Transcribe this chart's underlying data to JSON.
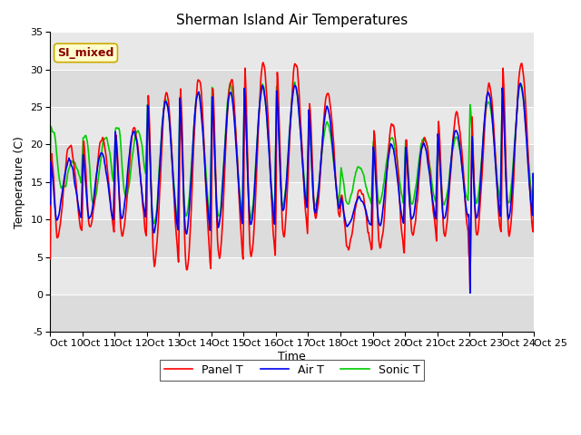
{
  "title": "Sherman Island Air Temperatures",
  "xlabel": "Time",
  "ylabel": "Temperature (C)",
  "ylim": [
    -5,
    35
  ],
  "xlim": [
    0,
    360
  ],
  "xtick_positions": [
    0,
    24,
    48,
    72,
    96,
    120,
    144,
    168,
    192,
    216,
    240,
    264,
    288,
    312,
    336,
    360
  ],
  "xtick_labels": [
    "Oct 10",
    "Oct 11",
    "Oct 12",
    "Oct 13",
    "Oct 14",
    "Oct 15",
    "Oct 16",
    "Oct 17",
    "Oct 18",
    "Oct 19",
    "Oct 20",
    "Oct 21",
    "Oct 22",
    "Oct 23",
    "Oct 24",
    "Oct 25"
  ],
  "ytick_positions": [
    -5,
    0,
    5,
    10,
    15,
    20,
    25,
    30,
    35
  ],
  "legend_label": "SI_mixed",
  "series_labels": [
    "Panel T",
    "Air T",
    "Sonic T"
  ],
  "series_colors": [
    "#ff0000",
    "#0000ee",
    "#00cc00"
  ],
  "bg_color": "#dcdcdc",
  "alt_bg_color": "#e8e8e8",
  "title_fontsize": 11,
  "axis_fontsize": 9,
  "tick_fontsize": 8,
  "legend_fontsize": 9,
  "linewidth": 1.2,
  "figwidth": 6.4,
  "figheight": 4.8,
  "dpi": 100
}
